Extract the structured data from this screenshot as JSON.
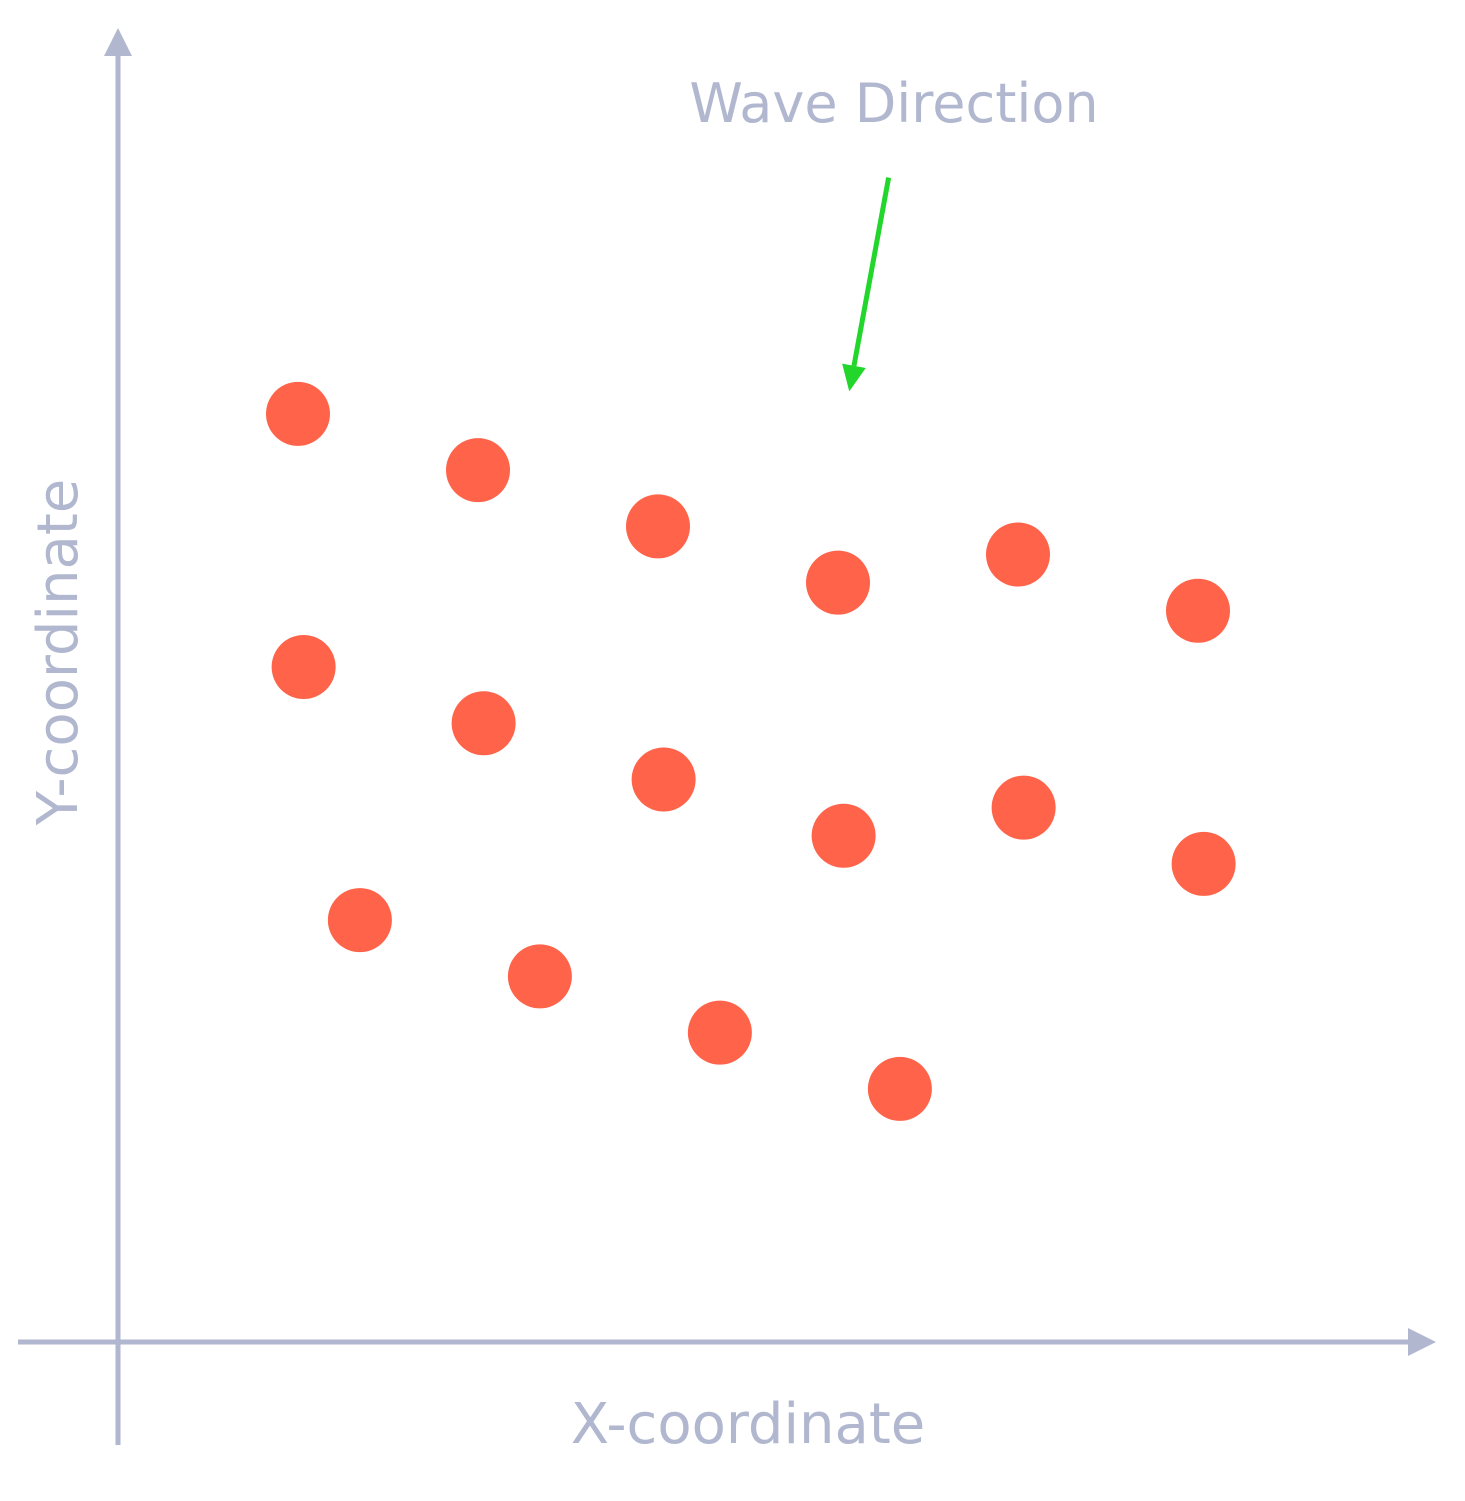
{
  "chart_data": {
    "type": "scatter",
    "title": "",
    "xlabel": "X-coordinate",
    "ylabel": "Y-coordinate",
    "xlim": [
      0,
      13
    ],
    "ylim": [
      0,
      13
    ],
    "grid": false,
    "ticks_shown": false,
    "points": [
      {
        "x": 1.6,
        "y": 8.25
      },
      {
        "x": 3.2,
        "y": 7.75
      },
      {
        "x": 4.8,
        "y": 7.25
      },
      {
        "x": 6.4,
        "y": 6.75
      },
      {
        "x": 8.0,
        "y": 7.0
      },
      {
        "x": 9.6,
        "y": 6.5
      },
      {
        "x": 1.65,
        "y": 6.0
      },
      {
        "x": 3.25,
        "y": 5.5
      },
      {
        "x": 4.85,
        "y": 5.0
      },
      {
        "x": 6.45,
        "y": 4.5
      },
      {
        "x": 8.05,
        "y": 4.75
      },
      {
        "x": 9.65,
        "y": 4.25
      },
      {
        "x": 2.15,
        "y": 3.75
      },
      {
        "x": 3.75,
        "y": 3.25
      },
      {
        "x": 5.35,
        "y": 2.75
      },
      {
        "x": 6.95,
        "y": 2.25
      }
    ],
    "annotations": [
      {
        "text": "Wave Direction",
        "arrow_from": {
          "x": 6.85,
          "y": 10.35
        },
        "arrow_to": {
          "x": 6.5,
          "y": 8.45
        }
      }
    ],
    "colors": {
      "points": "#ff634a",
      "axes": "#b0b7cf",
      "arrow": "#22d62b"
    }
  }
}
